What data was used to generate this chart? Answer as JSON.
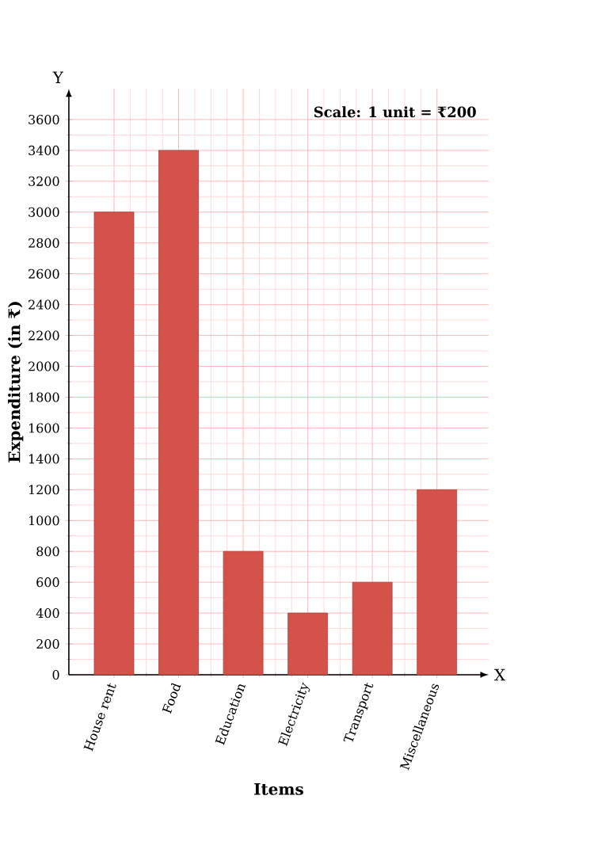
{
  "chart_data": {
    "type": "bar",
    "xlabel": "Items",
    "ylabel": "Expenditure (in ₹)",
    "categories": [
      "House rent",
      "Food",
      "Education",
      "Electricity",
      "Transport",
      "Miscellaneous"
    ],
    "values": [
      3000,
      3400,
      800,
      400,
      600,
      1200
    ],
    "color": "#d4524a",
    "ylim": [
      0,
      3800
    ],
    "yticks": [
      0,
      200,
      400,
      600,
      800,
      1000,
      1200,
      1400,
      1600,
      1800,
      2000,
      2200,
      2400,
      2600,
      2800,
      3000,
      3200,
      3400,
      3600
    ],
    "grid": true,
    "annotations": [
      "Scale: 1 unit = ₹200",
      "Y",
      "X"
    ]
  }
}
